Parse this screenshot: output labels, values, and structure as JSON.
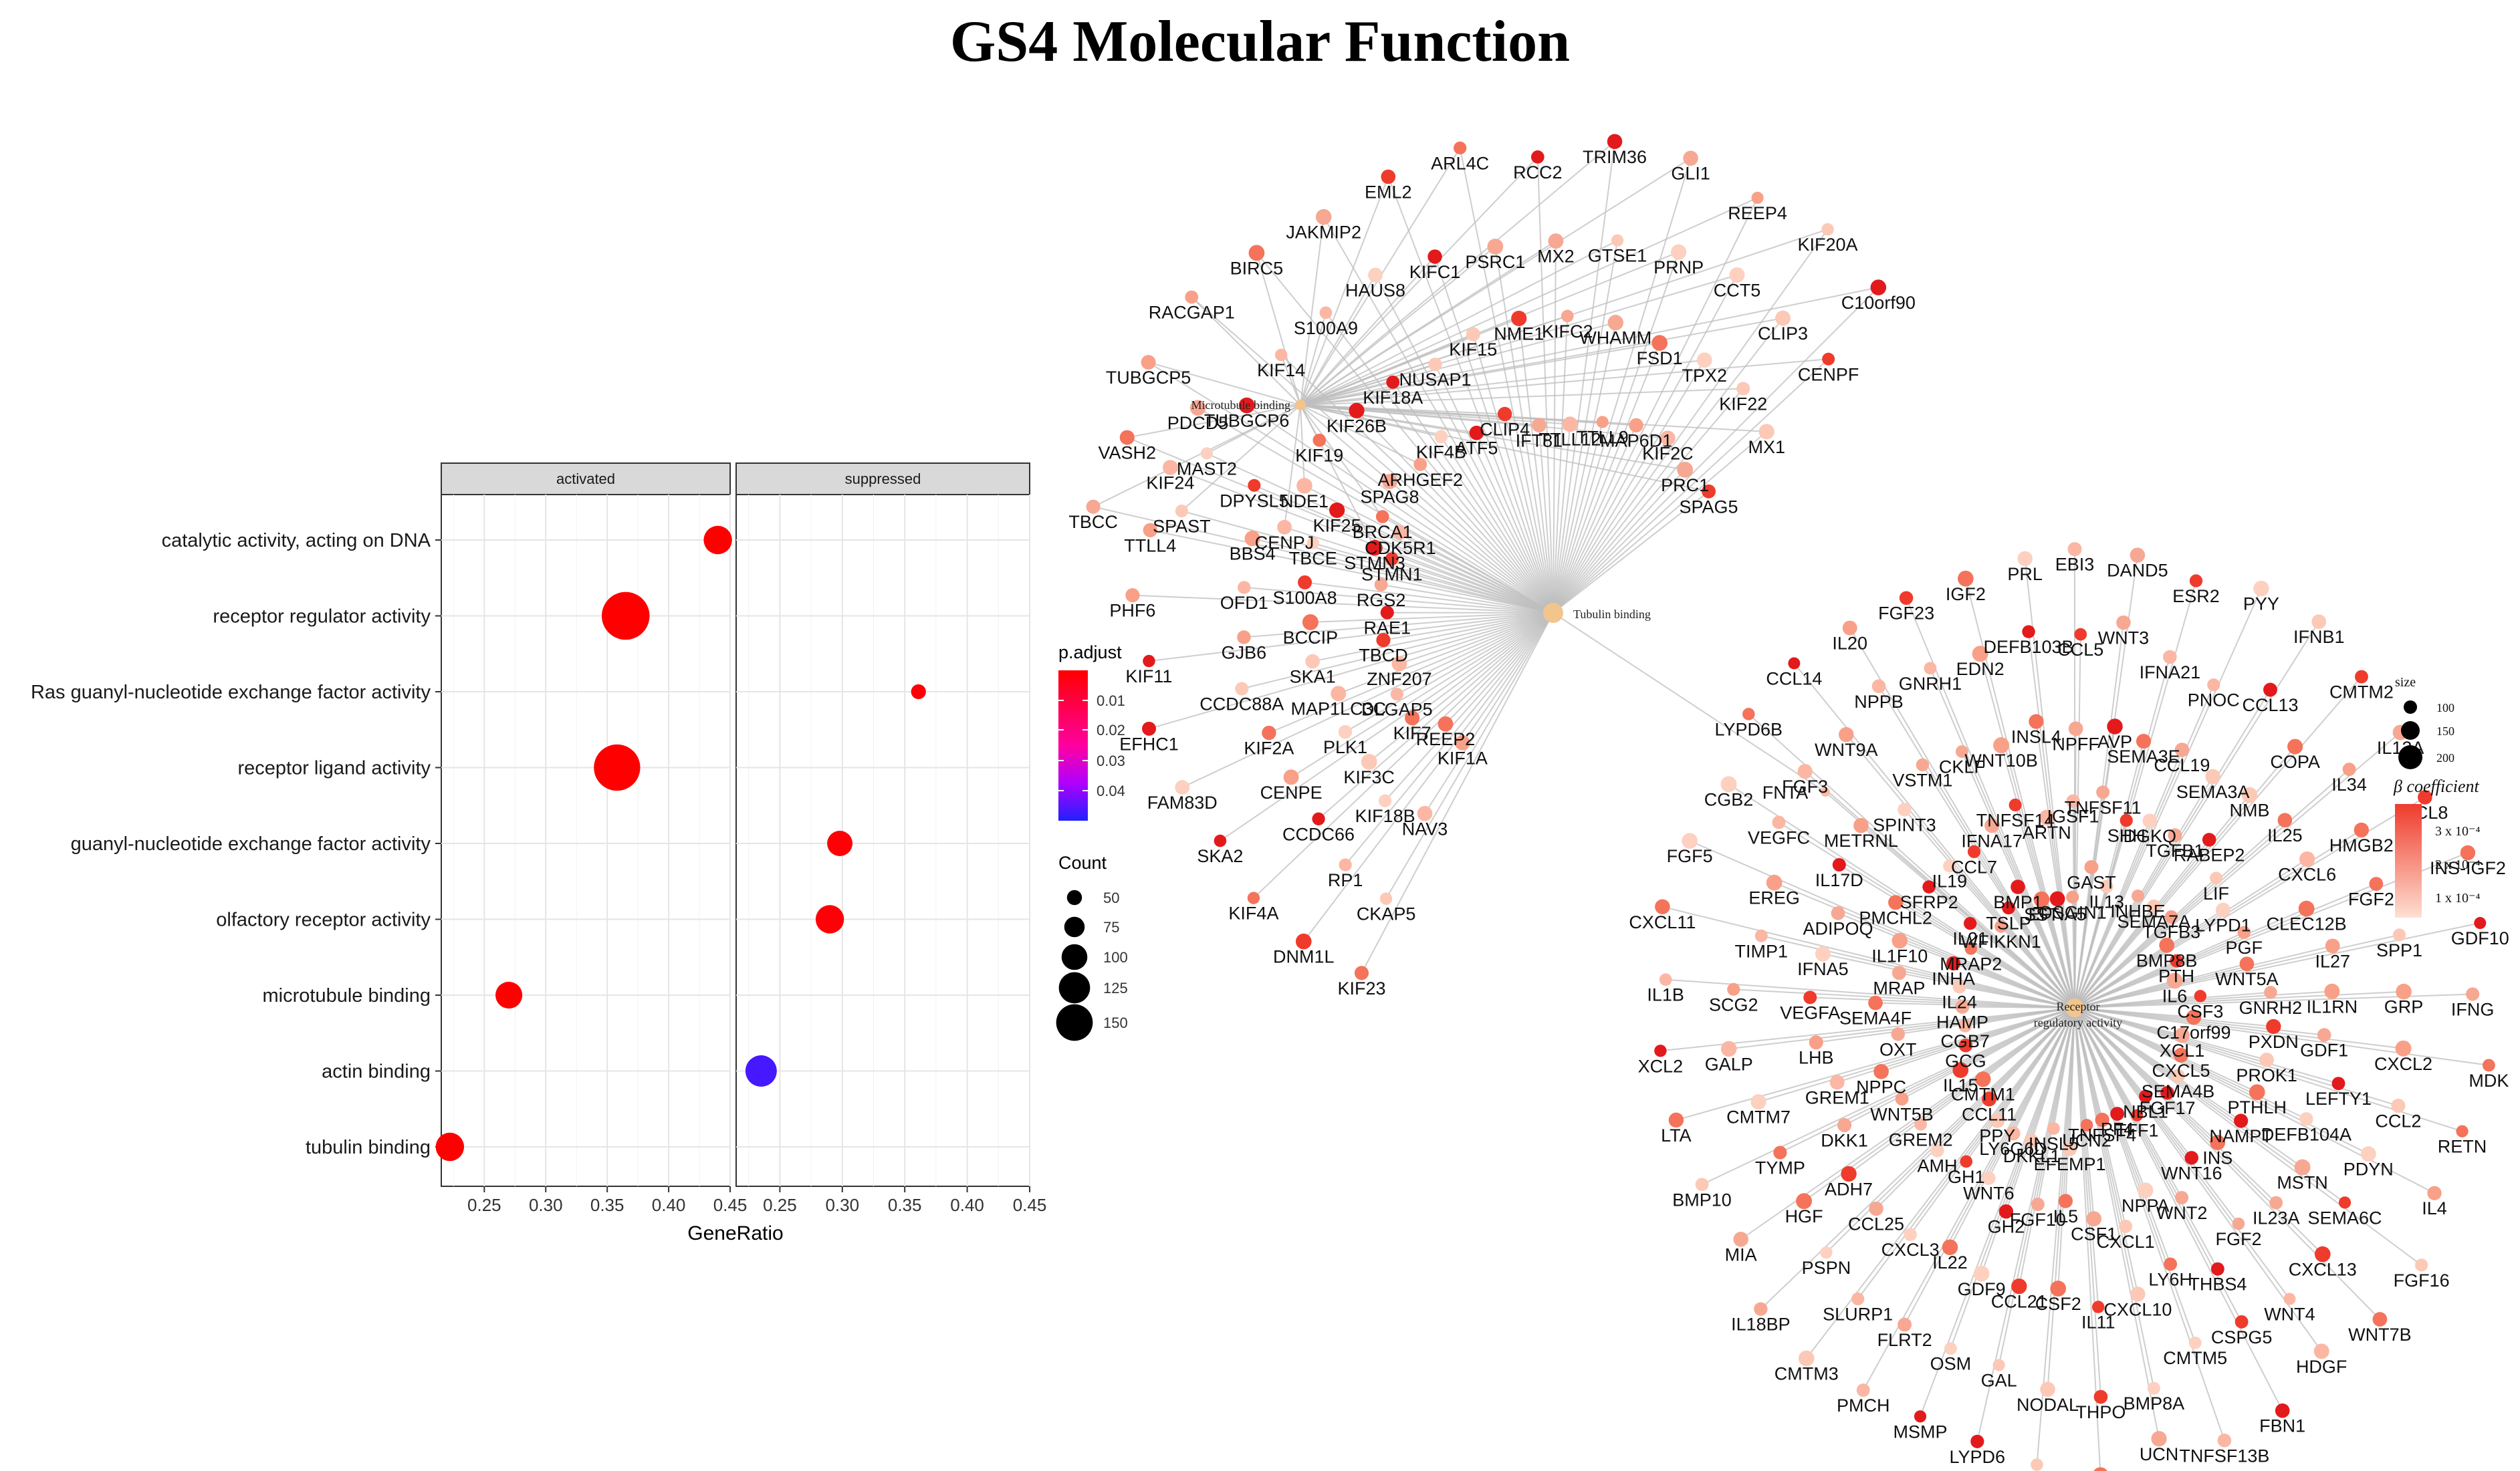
{
  "title": "GS4 Molecular Function",
  "chart_data": [
    {
      "type": "scatter",
      "subtype": "dotplot",
      "facets": [
        "activated",
        "suppressed"
      ],
      "xlabel": "GeneRatio",
      "xlim": [
        0.215,
        0.45
      ],
      "xticks": [
        "0.25",
        "0.30",
        "0.35",
        "0.40",
        "0.45"
      ],
      "categories": [
        "catalytic activity, acting on DNA",
        "receptor regulator activity",
        "Ras guanyl-nucleotide exchange factor activity",
        "receptor ligand activity",
        "guanyl-nucleotide exchange factor activity",
        "olfactory receptor activity",
        "microtubule binding",
        "actin binding",
        "tubulin binding"
      ],
      "points": [
        {
          "category": "catalytic activity, acting on DNA",
          "facet": "activated",
          "gene_ratio": 0.44,
          "count": 75,
          "p_adjust": 0.001
        },
        {
          "category": "receptor regulator activity",
          "facet": "activated",
          "gene_ratio": 0.365,
          "count": 140,
          "p_adjust": 0.0005
        },
        {
          "category": "Ras guanyl-nucleotide exchange factor activity",
          "facet": "suppressed",
          "gene_ratio": 0.361,
          "count": 30,
          "p_adjust": 0.002
        },
        {
          "category": "receptor ligand activity",
          "facet": "activated",
          "gene_ratio": 0.358,
          "count": 135,
          "p_adjust": 0.0005
        },
        {
          "category": "guanyl-nucleotide exchange factor activity",
          "facet": "suppressed",
          "gene_ratio": 0.298,
          "count": 65,
          "p_adjust": 0.002
        },
        {
          "category": "olfactory receptor activity",
          "facet": "suppressed",
          "gene_ratio": 0.29,
          "count": 75,
          "p_adjust": 0.002
        },
        {
          "category": "microtubule binding",
          "facet": "activated",
          "gene_ratio": 0.27,
          "count": 70,
          "p_adjust": 0.001
        },
        {
          "category": "actin binding",
          "facet": "suppressed",
          "gene_ratio": 0.235,
          "count": 85,
          "p_adjust": 0.045
        },
        {
          "category": "tubulin binding",
          "facet": "activated",
          "gene_ratio": 0.222,
          "count": 75,
          "p_adjust": 0.001
        }
      ],
      "legend_color": {
        "title": "p.adjust",
        "ticks": [
          "0.01",
          "0.02",
          "0.03",
          "0.04"
        ],
        "low_color": "#ff0000",
        "high_color": "#0000ff"
      },
      "legend_size": {
        "title": "Count",
        "values": [
          50,
          75,
          100,
          125,
          150
        ]
      }
    },
    {
      "type": "network",
      "title": "cnetplot",
      "hubs": [
        {
          "id": "microtubule",
          "label": "Microtubule binding"
        },
        {
          "id": "tubulin",
          "label": "Tubulin binding"
        },
        {
          "id": "receptor",
          "label": "Receptor\nregulatory activity"
        }
      ],
      "bridge_gene": "FNTA",
      "cluster_microtubule": [
        "TBCC",
        "SPAST",
        "CENPJ",
        "STMN3",
        "VASH2",
        "MAST2",
        "NDE1",
        "BRCA1",
        "TUBGCP5",
        "TUBGCP6",
        "KIF19",
        "SPAG8",
        "RACGAP1",
        "KIF14",
        "KIF26B",
        "ARHGEF2",
        "BIRC5",
        "S100A9",
        "KIF18A",
        "KIF4B",
        "JAKMIP2",
        "HAUS8",
        "NUSAP1",
        "ATF5",
        "EML2",
        "KIFC1",
        "KIF15",
        "CLIP4",
        "ARL4C",
        "PSRC1",
        "NME1",
        "IFT81",
        "RCC2",
        "MX2",
        "KIFC2",
        "TTLL12",
        "TRIM36",
        "GTSE1",
        "WHAMM",
        "TTLL9",
        "GLI1",
        "PRNP",
        "FSD1",
        "MAP6D1",
        "REEP4",
        "CCT5",
        "TPX2",
        "KIF2C",
        "KIF20A",
        "CLIP3",
        "KIF22",
        "PRC1",
        "C10orf90",
        "CENPF",
        "MX1",
        "SPAG5"
      ],
      "cluster_tubulin": [
        "KIF23",
        "CKAP5",
        "NAV3",
        "KIF1A",
        "DNM1L",
        "RP1",
        "KIF18B",
        "REEP2",
        "KIF4A",
        "CCDC66",
        "KIF3C",
        "KIF7",
        "SKA2",
        "CENPE",
        "PLK1",
        "DLGAP5",
        "FAM83D",
        "KIF2A",
        "MAP1LC3C",
        "ZNF207",
        "EFHC1",
        "CCDC88A",
        "SKA1",
        "TBCD",
        "KIF11",
        "GJB6",
        "BCCIP",
        "RAE1",
        "PHF6",
        "OFD1",
        "S100A8",
        "RGS2",
        "TTLL4",
        "BBS4",
        "TBCE",
        "STMN1",
        "KIF24",
        "DPYSL5",
        "KIF25",
        "CDK5R1",
        "PDCD5"
      ],
      "cluster_receptor": [
        "EBI3",
        "WNT3",
        "SEMA3E",
        "DGKQ",
        "INHBE",
        "DAND5",
        "IFNA21",
        "CCL19",
        "TGFB1",
        "SEMA7A",
        "ESR2",
        "PNOC",
        "SEMA3A",
        "RABEP2",
        "TGFB3",
        "PYY",
        "CCL13",
        "NMB",
        "LIF",
        "BMP8B",
        "IFNB1",
        "COPA",
        "IL25",
        "LYPD1",
        "PTH",
        "CMTM2",
        "IL34",
        "CXCL6",
        "PGF",
        "IL6",
        "IL12A",
        "HMGB2",
        "CLEC12B",
        "WNT5A",
        "CSF3",
        "CCL8",
        "FGF21",
        "IL27",
        "GNRH2",
        "C17orf99",
        "INS-IGF2",
        "SPP1",
        "IL1RN",
        "PXDN",
        "XCL1",
        "GDF10",
        "GRP",
        "GDF1",
        "PROK1",
        "CXCL5",
        "IFNG",
        "CXCL2",
        "LEFTY1",
        "PTHLH",
        "SEMA4B",
        "MDK",
        "CCL2",
        "DEFB104A",
        "NAMPT",
        "FGF17",
        "RETN",
        "PDYN",
        "MSTN",
        "INS",
        "NBL1",
        "IL4",
        "SEMA6C",
        "IL23A",
        "WNT16",
        "TFF1",
        "FGF16",
        "CXCL13",
        "FGF2",
        "WNT2",
        "PF4",
        "WNT7B",
        "WNT4",
        "THBS4",
        "NPPA",
        "TNFSF4",
        "HDGF",
        "CSPG5",
        "LY6H",
        "CXCL1",
        "UCN2",
        "FBN1",
        "CMTM5",
        "CXCL10",
        "CSF1",
        "EFEMP1",
        "TNFSF13B",
        "BMP8A",
        "IL11",
        "IL5",
        "INSL5",
        "UCN",
        "THPO",
        "CSF2",
        "FGF10",
        "DKKL1",
        "NGF",
        "NODAL",
        "CCL21",
        "GH2",
        "LY6G6D",
        "FGF11",
        "GAL",
        "GDF9",
        "WNT6",
        "PPY",
        "LYPD6",
        "OSM",
        "IL22",
        "GH1",
        "CCL11",
        "MSMP",
        "FLRT2",
        "CXCL3",
        "AMH",
        "CMTM1",
        "PMCH",
        "SLURP1",
        "CCL25",
        "GREM2",
        "IL15",
        "CMTM3",
        "PSPN",
        "ADH7",
        "WNT5B",
        "GCG",
        "IL18BP",
        "HGF",
        "DKK1",
        "NPPC",
        "CGB7",
        "MIA",
        "TYMP",
        "GREM1",
        "OXT",
        "HAMP",
        "BMP10",
        "CMTM7",
        "LHB",
        "SEMA4F",
        "IL24",
        "LTA",
        "GALP",
        "VEGFA",
        "MRAP",
        "INHA",
        "XCL2",
        "SCG2",
        "IFNA5",
        "IL1F10",
        "MRAP2",
        "IL1B",
        "TIMP1",
        "ADIPOQ",
        "PMCHL2",
        "IL21",
        "CXCL11",
        "EREG",
        "IL17D",
        "SFRP2",
        "WFIKKN1",
        "FGF5",
        "VEGFC",
        "METRNL",
        "IL19",
        "TSLP",
        "CGB2",
        "FGF3",
        "SPINT3",
        "CCL7",
        "BMP1",
        "LYPD6B",
        "WNT9A",
        "VSTM1",
        "IFNA17",
        "SST",
        "CCL14",
        "NPPB",
        "CKLF",
        "TNFSF14",
        "EFNA5",
        "IL20",
        "GNRH1",
        "WNT10B",
        "ARTN",
        "OSGIN1",
        "FGF23",
        "EDN2",
        "INSL4",
        "IGSF1",
        "GAST",
        "IGF2",
        "DEFB103B",
        "NPFF",
        "TNFSF11",
        "IL13",
        "PRL",
        "CCL5",
        "AVP",
        "SHH"
      ],
      "legend_size": {
        "title": "size",
        "values": [
          100,
          150,
          200
        ]
      },
      "legend_color": {
        "title": "β coefficient",
        "ticks": [
          "3 x 10⁻⁴",
          "2 x 10⁻⁴",
          "1 x 10⁻⁴"
        ]
      }
    }
  ]
}
